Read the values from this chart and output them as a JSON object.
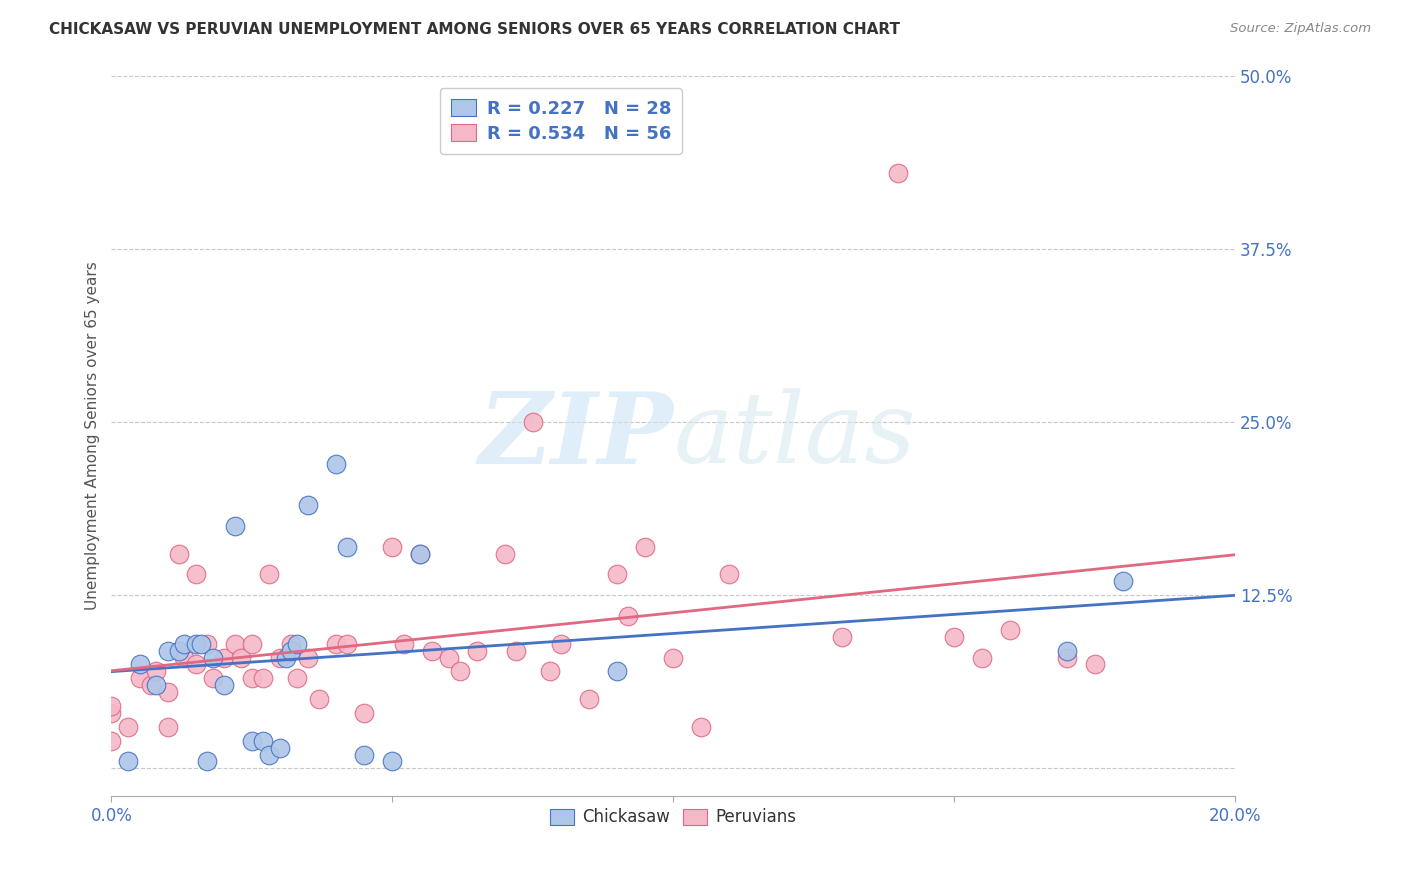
{
  "title": "CHICKASAW VS PERUVIAN UNEMPLOYMENT AMONG SENIORS OVER 65 YEARS CORRELATION CHART",
  "source": "Source: ZipAtlas.com",
  "ylabel": "Unemployment Among Seniors over 65 years",
  "xlim": [
    0.0,
    0.2
  ],
  "ylim": [
    -0.02,
    0.5
  ],
  "xticks": [
    0.0,
    0.05,
    0.1,
    0.15,
    0.2
  ],
  "xtick_labels": [
    "0.0%",
    "",
    "",
    "",
    "20.0%"
  ],
  "ytick_labels": [
    "",
    "12.5%",
    "25.0%",
    "37.5%",
    "50.0%"
  ],
  "yticks": [
    0.0,
    0.125,
    0.25,
    0.375,
    0.5
  ],
  "chickasaw_color": "#aec6e8",
  "peruvian_color": "#f4b8c8",
  "chickasaw_line_color": "#4472c4",
  "peruvian_line_color": "#e06880",
  "chickasaw_R": 0.227,
  "chickasaw_N": 28,
  "peruvian_R": 0.534,
  "peruvian_N": 56,
  "chickasaw_scatter_x": [
    0.003,
    0.005,
    0.008,
    0.01,
    0.012,
    0.013,
    0.015,
    0.016,
    0.017,
    0.018,
    0.02,
    0.022,
    0.025,
    0.027,
    0.028,
    0.03,
    0.031,
    0.032,
    0.033,
    0.035,
    0.04,
    0.042,
    0.045,
    0.05,
    0.055,
    0.09,
    0.17,
    0.18
  ],
  "chickasaw_scatter_y": [
    0.005,
    0.075,
    0.06,
    0.085,
    0.085,
    0.09,
    0.09,
    0.09,
    0.005,
    0.08,
    0.06,
    0.175,
    0.02,
    0.02,
    0.01,
    0.015,
    0.08,
    0.085,
    0.09,
    0.19,
    0.22,
    0.16,
    0.01,
    0.005,
    0.155,
    0.07,
    0.085,
    0.135
  ],
  "peruvian_scatter_x": [
    0.0,
    0.0,
    0.0,
    0.003,
    0.005,
    0.007,
    0.008,
    0.01,
    0.01,
    0.012,
    0.013,
    0.015,
    0.015,
    0.017,
    0.018,
    0.02,
    0.022,
    0.023,
    0.025,
    0.025,
    0.027,
    0.028,
    0.03,
    0.032,
    0.033,
    0.035,
    0.037,
    0.04,
    0.042,
    0.045,
    0.05,
    0.052,
    0.055,
    0.057,
    0.06,
    0.062,
    0.065,
    0.07,
    0.072,
    0.075,
    0.078,
    0.08,
    0.085,
    0.09,
    0.092,
    0.095,
    0.1,
    0.105,
    0.11,
    0.13,
    0.14,
    0.15,
    0.155,
    0.16,
    0.17,
    0.175
  ],
  "peruvian_scatter_y": [
    0.02,
    0.04,
    0.045,
    0.03,
    0.065,
    0.06,
    0.07,
    0.055,
    0.03,
    0.155,
    0.08,
    0.075,
    0.14,
    0.09,
    0.065,
    0.08,
    0.09,
    0.08,
    0.09,
    0.065,
    0.065,
    0.14,
    0.08,
    0.09,
    0.065,
    0.08,
    0.05,
    0.09,
    0.09,
    0.04,
    0.16,
    0.09,
    0.155,
    0.085,
    0.08,
    0.07,
    0.085,
    0.155,
    0.085,
    0.25,
    0.07,
    0.09,
    0.05,
    0.14,
    0.11,
    0.16,
    0.08,
    0.03,
    0.14,
    0.095,
    0.43,
    0.095,
    0.08,
    0.1,
    0.08,
    0.075
  ],
  "watermark_zip": "ZIP",
  "watermark_atlas": "atlas",
  "background_color": "#ffffff",
  "grid_color": "#c8c8c8"
}
